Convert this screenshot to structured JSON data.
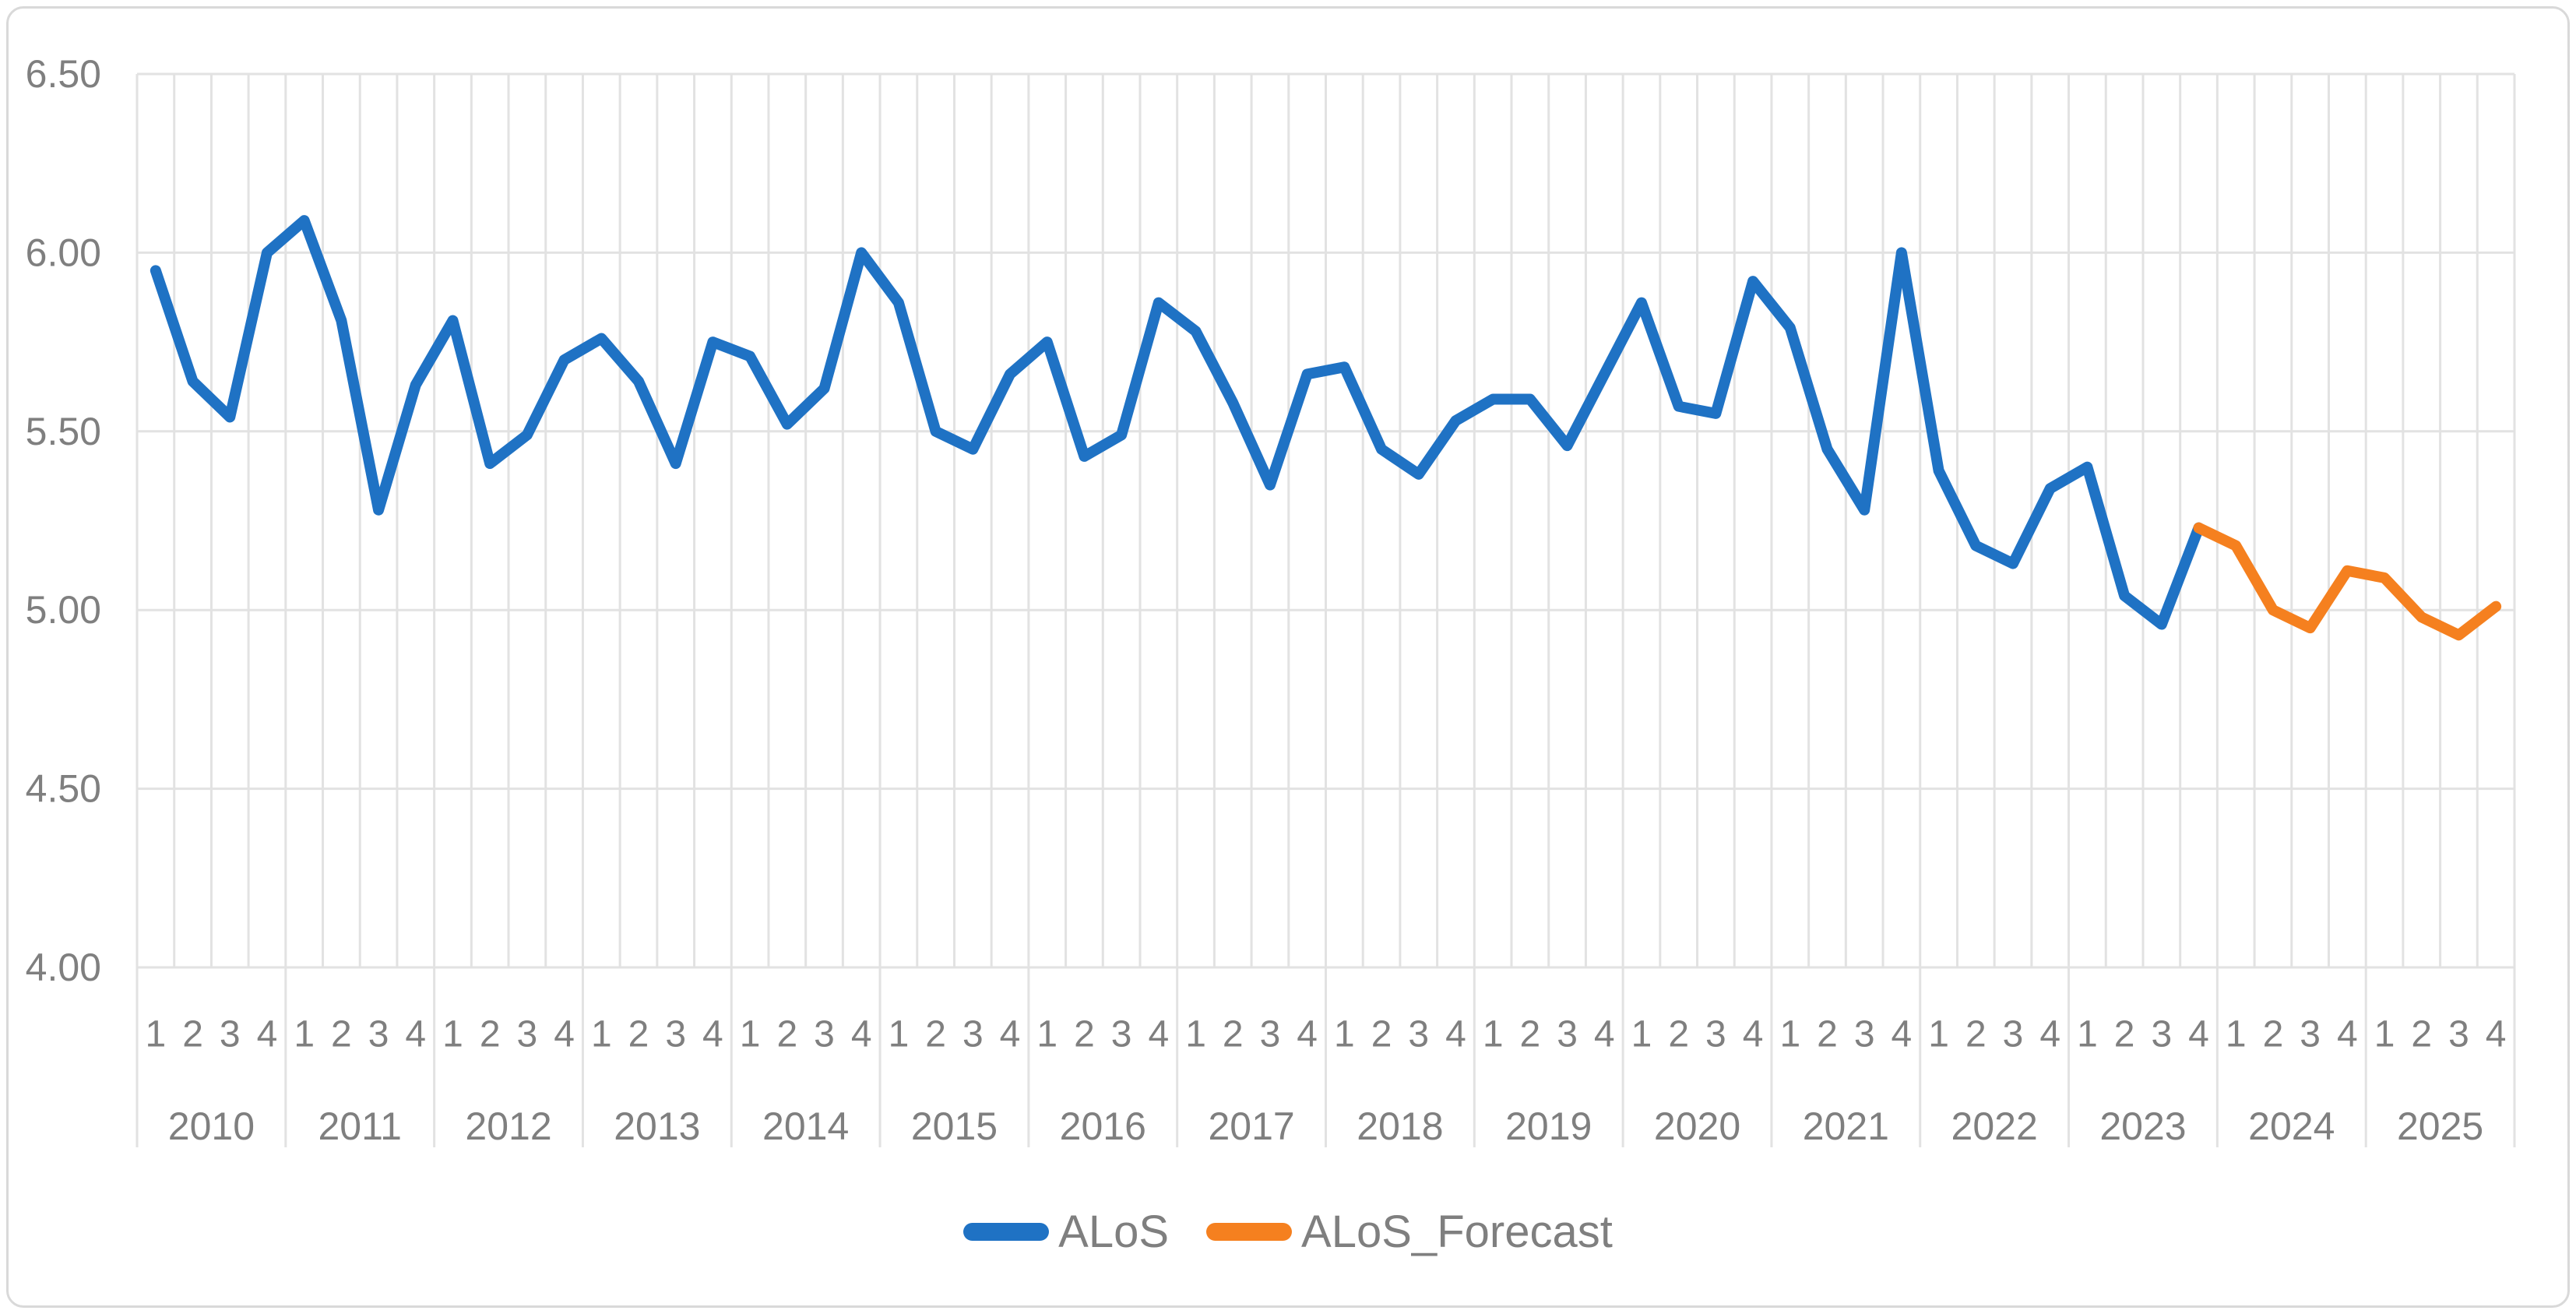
{
  "chart_data": {
    "type": "line",
    "title": "",
    "y_axis": {
      "tick_labels": [
        "6.50",
        "6.00",
        "5.50",
        "5.00",
        "4.50",
        "4.00"
      ],
      "min": 4.0,
      "max": 6.5,
      "step": 0.5,
      "grid": true
    },
    "x_axis": {
      "quarter_labels_per_year": [
        "1",
        "2",
        "3",
        "4"
      ],
      "years": [
        "2010",
        "2011",
        "2012",
        "2013",
        "2014",
        "2015",
        "2016",
        "2017",
        "2018",
        "2019",
        "2020",
        "2021",
        "2022",
        "2023",
        "2024",
        "2025"
      ]
    },
    "legend": {
      "position": "bottom-center"
    },
    "series": [
      {
        "name": "ALoS",
        "color": "#1F72C4",
        "start_index": 0,
        "start_quarter": "2010 Q1",
        "end_quarter": "2023 Q4",
        "values": [
          5.95,
          5.64,
          5.54,
          6.0,
          6.09,
          5.81,
          5.28,
          5.63,
          5.81,
          5.41,
          5.49,
          5.7,
          5.76,
          5.64,
          5.41,
          5.75,
          5.71,
          5.52,
          5.62,
          6.0,
          5.86,
          5.5,
          5.45,
          5.66,
          5.75,
          5.43,
          5.49,
          5.86,
          5.78,
          5.58,
          5.35,
          5.66,
          5.68,
          5.45,
          5.38,
          5.53,
          5.59,
          5.59,
          5.46,
          5.66,
          5.86,
          5.57,
          5.55,
          5.92,
          5.79,
          5.45,
          5.28,
          6.0,
          5.39,
          5.18,
          5.13,
          5.34,
          5.4,
          5.04,
          4.96,
          5.23
        ]
      },
      {
        "name": "ALoS_Forecast",
        "color": "#F5801F",
        "start_index": 55,
        "start_quarter": "2023 Q4",
        "end_quarter": "2025 Q4",
        "values": [
          5.23,
          5.18,
          5.0,
          4.95,
          5.11,
          5.09,
          4.98,
          4.93,
          5.01
        ]
      }
    ],
    "colors": {
      "axis_text": "#7F7F7F",
      "gridline": "#E2E2E2",
      "chart_border": "#D9D9D9",
      "background": "#FFFFFF"
    }
  }
}
